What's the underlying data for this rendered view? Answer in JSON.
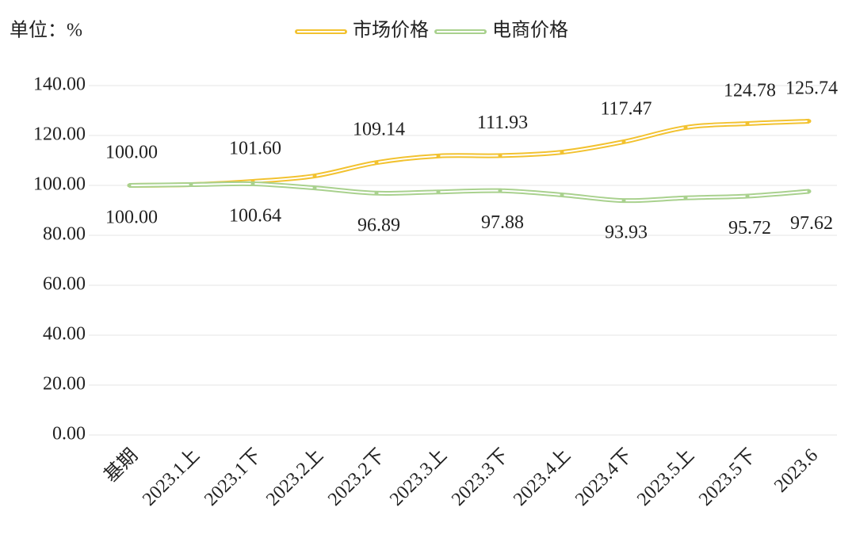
{
  "chart_data": {
    "type": "line",
    "title": "单位：%",
    "categories": [
      "基期",
      "2023.1上",
      "2023.1下",
      "2023.2上",
      "2023.2下",
      "2023.3上",
      "2023.3下",
      "2023.4上",
      "2023.4下",
      "2023.5上",
      "2023.5下",
      "2023.6"
    ],
    "series": [
      {
        "name": "市场价格",
        "color": "#f2c230",
        "values": [
          100.0,
          100.3,
          101.6,
          103.8,
          109.14,
          111.8,
          111.93,
          113.3,
          117.47,
          123.2,
          124.78,
          125.74
        ],
        "value_labels": [
          "100.00",
          null,
          "101.60",
          null,
          "109.14",
          null,
          "111.93",
          null,
          "117.47",
          null,
          "124.78",
          "125.74"
        ]
      },
      {
        "name": "电商价格",
        "color": "#a9d18e",
        "values": [
          100.0,
          100.3,
          100.64,
          99.0,
          96.89,
          97.4,
          97.88,
          96.2,
          93.93,
          95.0,
          95.72,
          97.62
        ],
        "value_labels": [
          "100.00",
          null,
          "100.64",
          null,
          "96.89",
          null,
          "97.88",
          null,
          "93.93",
          null,
          "95.72",
          "97.62"
        ]
      }
    ],
    "ylim": [
      0,
      140
    ],
    "yticks": [
      {
        "value": 0,
        "label": "0.00"
      },
      {
        "value": 20,
        "label": "20.00"
      },
      {
        "value": 40,
        "label": "40.00"
      },
      {
        "value": 60,
        "label": "60.00"
      },
      {
        "value": 80,
        "label": "80.00"
      },
      {
        "value": 100,
        "label": "100.00"
      },
      {
        "value": 120,
        "label": "120.00"
      },
      {
        "value": 140,
        "label": "140.00"
      }
    ],
    "grid": true,
    "legend": "top"
  }
}
